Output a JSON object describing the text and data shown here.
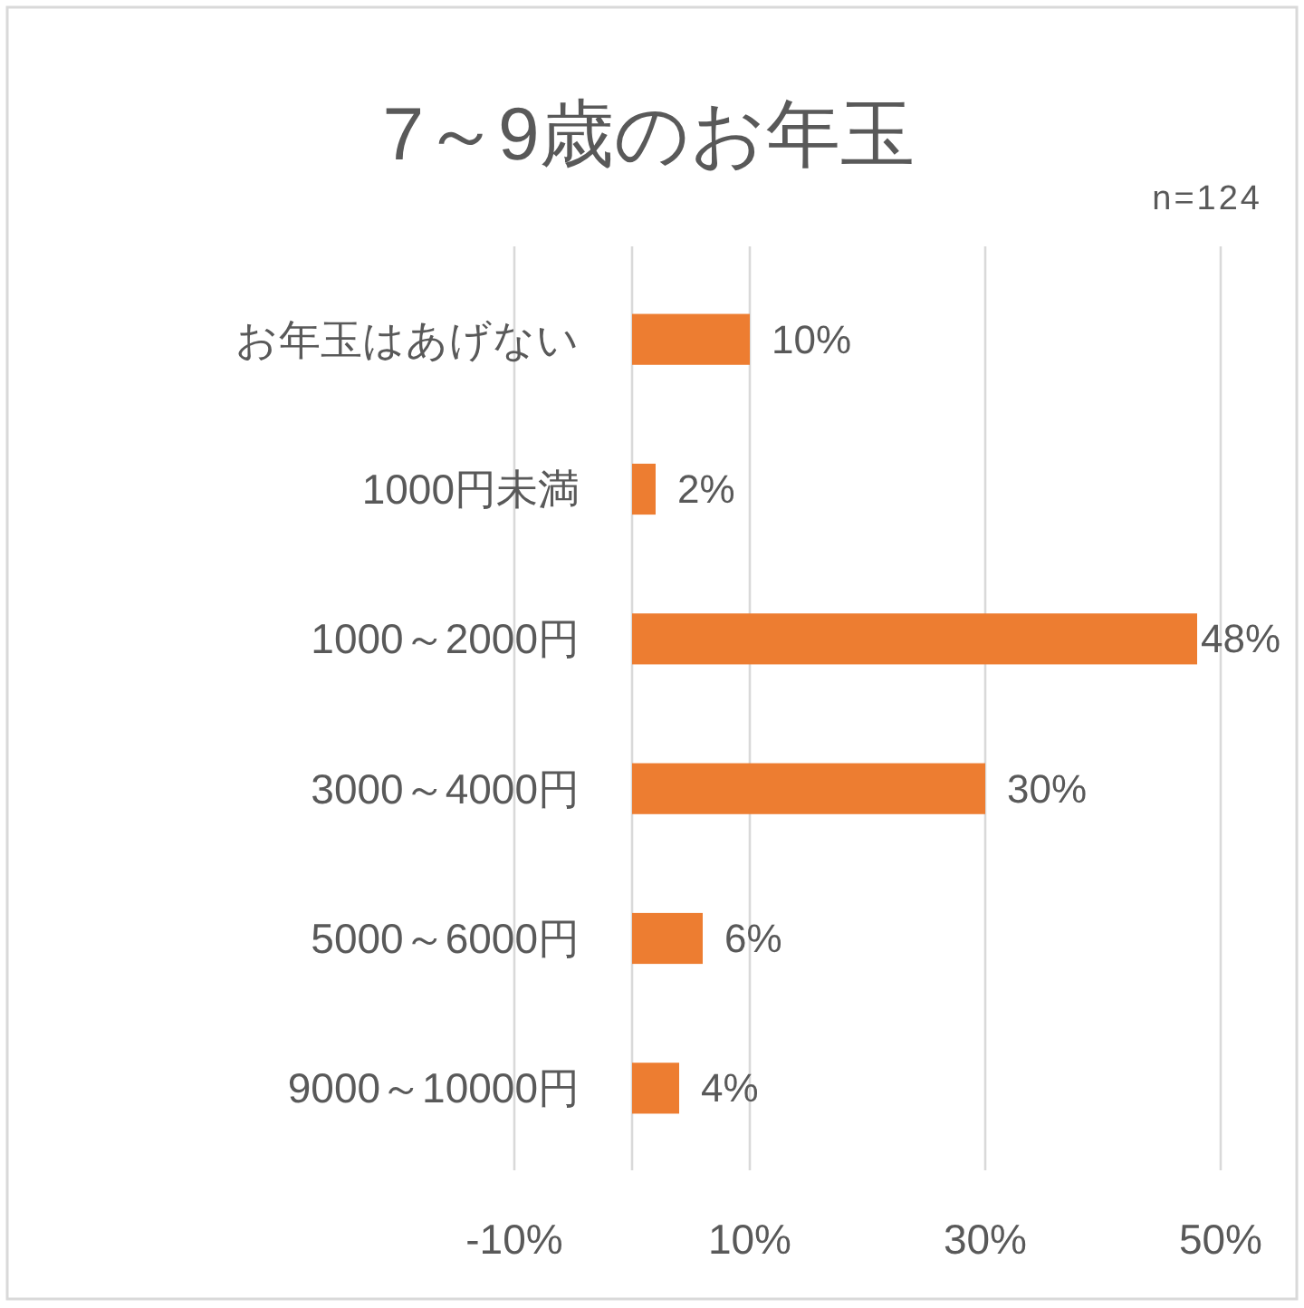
{
  "chart_data": {
    "type": "bar",
    "orientation": "horizontal",
    "title": "7～9歳のお年玉",
    "annotations": [
      "n=124"
    ],
    "categories": [
      "お年玉はあげない",
      "1000円未満",
      "1000～2000円",
      "3000～4000円",
      "5000～6000円",
      "9000～10000円"
    ],
    "values": [
      10,
      2,
      48,
      30,
      6,
      4
    ],
    "color": "#ed7d31",
    "value_labels": [
      "10%",
      "2%",
      "48%",
      "30%",
      "6%",
      "4%"
    ],
    "xlim": [
      -10,
      50
    ],
    "xticks": [
      {
        "value": -10,
        "label": "-10%"
      },
      {
        "value": 10,
        "label": "10%"
      },
      {
        "value": 30,
        "label": "30%"
      },
      {
        "value": 50,
        "label": "50%"
      }
    ],
    "grid": "x"
  }
}
